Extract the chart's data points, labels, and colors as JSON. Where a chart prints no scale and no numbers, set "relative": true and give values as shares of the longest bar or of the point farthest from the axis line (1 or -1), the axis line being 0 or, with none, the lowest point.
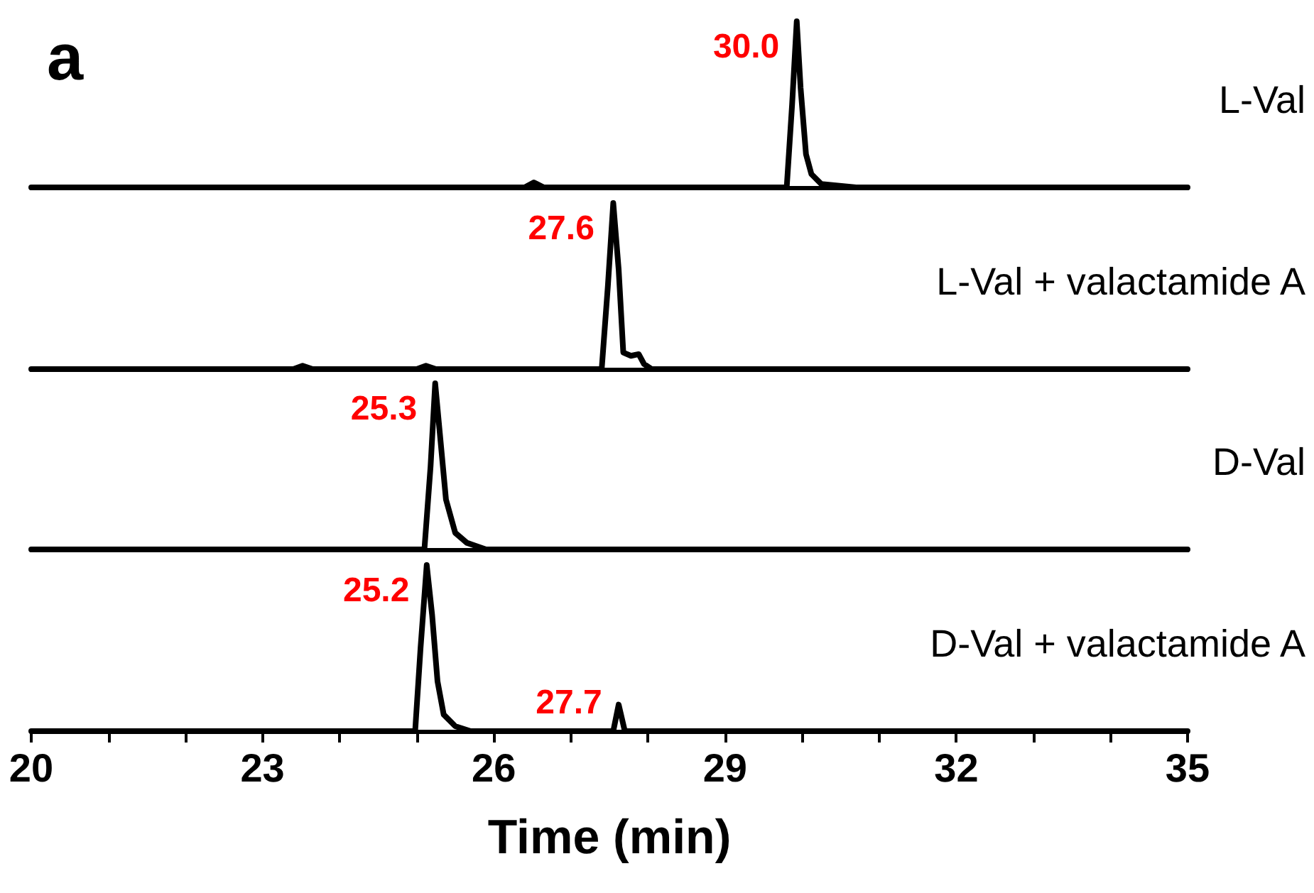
{
  "chart_data": [
    {
      "type": "line",
      "title": "a",
      "relative": true,
      "xlim": [
        20,
        35
      ],
      "tick_labels": false,
      "marker": "none",
      "line_style": "solid",
      "grid": false,
      "legend": false,
      "series": [
        {
          "name": "L-Val",
          "color": "#000000",
          "x": [
            20,
            26.4,
            26.52,
            26.65,
            29.8,
            29.87,
            29.93,
            29.98,
            30.05,
            30.12,
            30.25,
            30.7,
            35
          ],
          "values": [
            0,
            0,
            0.03,
            0,
            0,
            0.5,
            1,
            0.6,
            0.2,
            0.08,
            0.02,
            0,
            0
          ]
        }
      ],
      "annotations": [
        {
          "text": "30.0",
          "x": 30.0,
          "y": 1
        }
      ]
    },
    {
      "type": "line",
      "relative": true,
      "xlim": [
        20,
        35
      ],
      "tick_labels": false,
      "marker": "none",
      "line_style": "solid",
      "grid": false,
      "legend": false,
      "series": [
        {
          "name": "L-Val + valactamide A",
          "color": "#000000",
          "x": [
            20,
            23.4,
            23.52,
            23.65,
            25.0,
            25.12,
            25.25,
            27.4,
            27.48,
            27.55,
            27.62,
            27.68,
            27.78,
            27.88,
            27.95,
            28.05,
            35
          ],
          "values": [
            0,
            0,
            0.02,
            0,
            0,
            0.02,
            0,
            0,
            0.5,
            1,
            0.6,
            0.1,
            0.08,
            0.09,
            0.03,
            0,
            0
          ]
        }
      ],
      "annotations": [
        {
          "text": "27.6",
          "x": 27.6,
          "y": 1
        }
      ]
    },
    {
      "type": "line",
      "relative": true,
      "xlim": [
        20,
        35
      ],
      "tick_labels": false,
      "marker": "none",
      "line_style": "solid",
      "grid": false,
      "legend": false,
      "series": [
        {
          "name": "D-Val",
          "color": "#000000",
          "x": [
            20,
            25.1,
            25.18,
            25.24,
            25.3,
            25.38,
            25.5,
            25.65,
            25.9,
            35
          ],
          "values": [
            0,
            0,
            0.5,
            1,
            0.7,
            0.3,
            0.1,
            0.04,
            0,
            0
          ]
        }
      ],
      "annotations": [
        {
          "text": "25.3",
          "x": 25.3,
          "y": 1
        }
      ]
    },
    {
      "type": "line",
      "relative": true,
      "xlim": [
        20,
        35
      ],
      "xticks": [
        20,
        {
          "value": 21,
          "label": null
        },
        {
          "value": 22,
          "label": null
        },
        23,
        {
          "value": 24,
          "label": null
        },
        {
          "value": 25,
          "label": null
        },
        26,
        {
          "value": 27,
          "label": null
        },
        {
          "value": 28,
          "label": null
        },
        29,
        {
          "value": 30,
          "label": null
        },
        {
          "value": 31,
          "label": null
        },
        32,
        {
          "value": 33,
          "label": null
        },
        {
          "value": 34,
          "label": null
        },
        35
      ],
      "tick_labels": "x",
      "xlabel": "Time (min)",
      "marker": "none",
      "line_style": "solid",
      "grid": false,
      "legend": false,
      "series": [
        {
          "name": "D-Val + valactamide A",
          "color": "#000000",
          "x": [
            20,
            24.98,
            25.05,
            25.13,
            25.2,
            25.27,
            25.35,
            25.5,
            25.7,
            27.55,
            27.62,
            27.7,
            35
          ],
          "values": [
            0,
            0,
            0.5,
            1,
            0.7,
            0.3,
            0.1,
            0.03,
            0,
            0,
            0.16,
            0,
            0
          ]
        }
      ],
      "annotations": [
        {
          "text": "25.2",
          "x": 25.2,
          "y": 1
        },
        {
          "text": "27.7",
          "x": 27.7,
          "y": 0.16
        }
      ]
    }
  ]
}
